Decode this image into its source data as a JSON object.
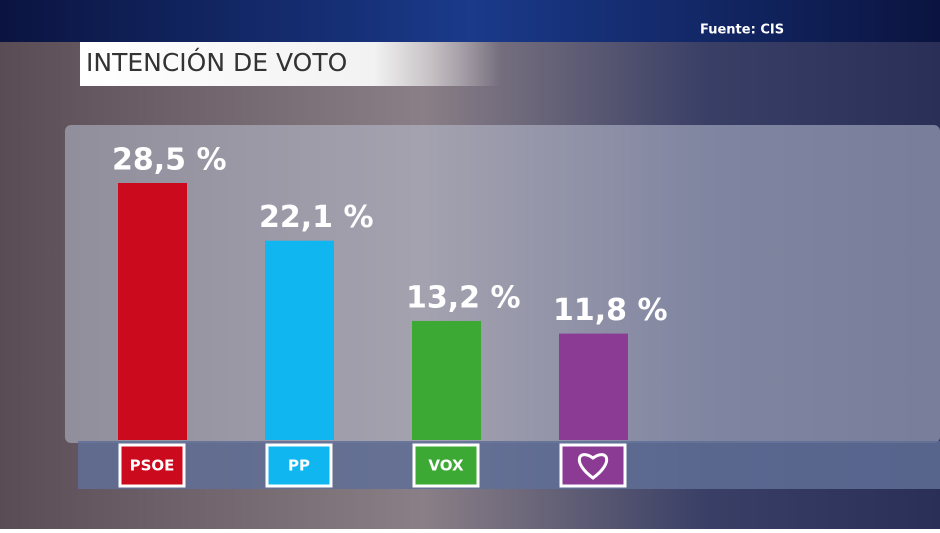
{
  "chart_data": {
    "type": "bar",
    "title": "INTENCIÓN DE VOTO",
    "source": "Fuente: CIS",
    "categories": [
      "PSOE",
      "PP",
      "VOX",
      null
    ],
    "values": [
      28.5,
      22.1,
      13.2,
      11.8
    ],
    "value_labels": [
      "28,5 %",
      "22,1 %",
      "13,2 %",
      "11,8 %"
    ],
    "colors": [
      "#cc0a1e",
      "#0fb6f0",
      "#3da935",
      "#8c3b94"
    ]
  }
}
